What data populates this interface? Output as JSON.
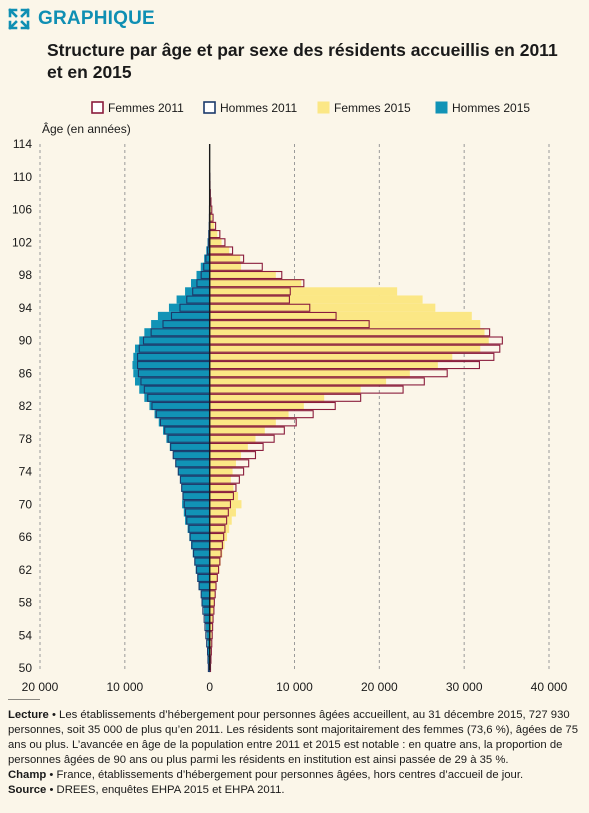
{
  "header": {
    "badge": "GRAPHIQUE",
    "badge_icon": "expand-arrows-icon"
  },
  "colors": {
    "accent": "#0f8fb3",
    "femmes_2011": "#8a1c3c",
    "hommes_2011": "#1b3a6b",
    "femmes_2015": "#fbe785",
    "hommes_2015": "#1193b6",
    "background": "#fbf6e9"
  },
  "chart_data": {
    "type": "bar",
    "orientation": "horizontal-pyramid",
    "title": "Structure par âge et par sexe des résidents accueillis en 2011 et en 2015",
    "ylabel": "Âge (en années)",
    "ylim": [
      50,
      114
    ],
    "y_ticks": [
      "114",
      "110",
      "106",
      "102",
      "98",
      "94",
      "90",
      "86",
      "82",
      "78",
      "74",
      "70",
      "66",
      "62",
      "58",
      "54",
      "50"
    ],
    "xlim": [
      -20000,
      40000
    ],
    "x_ticks": [
      "20 000",
      "10 000",
      "0",
      "10 000",
      "20 000",
      "30 000",
      "40 000"
    ],
    "grid": "vertical dashed",
    "legend_position": "top",
    "series": [
      {
        "name": "Femmes 2011",
        "side": "right",
        "style": "outline"
      },
      {
        "name": "Hommes 2011",
        "side": "left",
        "style": "outline"
      },
      {
        "name": "Femmes 2015",
        "side": "right",
        "style": "filled"
      },
      {
        "name": "Hommes 2015",
        "side": "left",
        "style": "filled"
      }
    ],
    "ages": [
      50,
      51,
      52,
      53,
      54,
      55,
      56,
      57,
      58,
      59,
      60,
      61,
      62,
      63,
      64,
      65,
      66,
      67,
      68,
      69,
      70,
      71,
      72,
      73,
      74,
      75,
      76,
      77,
      78,
      79,
      80,
      81,
      82,
      83,
      84,
      85,
      86,
      87,
      88,
      89,
      90,
      91,
      92,
      93,
      94,
      95,
      96,
      97,
      98,
      99,
      100,
      101,
      102,
      103,
      104,
      105,
      106,
      107,
      108,
      109,
      110
    ],
    "femmes_2011": [
      100,
      150,
      200,
      250,
      300,
      350,
      400,
      500,
      550,
      650,
      750,
      900,
      1050,
      1200,
      1350,
      1500,
      1650,
      1800,
      2000,
      2200,
      2450,
      2800,
      3100,
      3500,
      4000,
      4600,
      5400,
      6300,
      7600,
      8800,
      10200,
      12200,
      14800,
      17800,
      22800,
      25300,
      28000,
      31800,
      33500,
      34200,
      34500,
      33000,
      18800,
      14900,
      11800,
      9400,
      9500,
      11100,
      8500,
      6200,
      4000,
      2700,
      1800,
      1200,
      700,
      400,
      250,
      150,
      80,
      40,
      20
    ],
    "hommes_2011": [
      150,
      200,
      250,
      350,
      450,
      550,
      650,
      800,
      900,
      1000,
      1250,
      1400,
      1550,
      1750,
      1900,
      2100,
      2300,
      2450,
      2700,
      2850,
      3000,
      3150,
      3300,
      3450,
      3700,
      4000,
      4300,
      4600,
      4900,
      5300,
      5800,
      6300,
      6800,
      7300,
      7700,
      8100,
      8400,
      8500,
      8500,
      8300,
      7800,
      6900,
      5500,
      4500,
      3500,
      2700,
      2000,
      1500,
      1000,
      700,
      450,
      250,
      150,
      100,
      50,
      30,
      20,
      10,
      5,
      3,
      1
    ],
    "femmes_2015": [
      100,
      120,
      150,
      200,
      250,
      300,
      350,
      450,
      550,
      650,
      800,
      950,
      1150,
      1300,
      1500,
      1750,
      2050,
      2300,
      2600,
      3100,
      3750,
      3350,
      2800,
      2500,
      2700,
      3100,
      3700,
      4500,
      5400,
      6500,
      7800,
      9300,
      11100,
      13500,
      17800,
      20800,
      23600,
      26900,
      28600,
      31900,
      32900,
      32400,
      31900,
      30900,
      26600,
      25100,
      22100,
      10800,
      7800,
      3700,
      3600,
      2300,
      1400,
      900,
      550,
      300,
      180,
      100,
      50,
      20,
      10
    ],
    "hommes_2015": [
      100,
      150,
      200,
      250,
      350,
      450,
      550,
      700,
      850,
      1000,
      1300,
      1450,
      1650,
      1800,
      2000,
      2200,
      2400,
      2600,
      2900,
      3050,
      3250,
      3200,
      3300,
      3450,
      3700,
      4000,
      4300,
      4700,
      5100,
      5500,
      6000,
      6500,
      7100,
      7700,
      8300,
      8800,
      9000,
      9100,
      9000,
      8800,
      8300,
      7700,
      6900,
      6100,
      4800,
      3900,
      2900,
      2200,
      1550,
      1050,
      650,
      400,
      250,
      150,
      90,
      50,
      30,
      15,
      8,
      4,
      2
    ]
  },
  "notes": {
    "lecture_label": "Lecture",
    "lecture_text": " • Les établissements d’hébergement pour personnes âgées accueillent, au 31 décembre 2015, 727 930 personnes, soit 35 000 de plus qu’en 2011. Les résidents sont majoritairement des femmes (73,6 %), âgées de 75 ans ou plus. L’avancée en âge de la population entre 2011 et 2015 est notable : en quatre ans, la proportion de personnes âgées de 90 ans ou plus parmi les résidents en institution est ainsi passée de 29 à 35 %.",
    "champ_label": "Champ",
    "champ_text": " • France, établissements d’hébergement pour personnes âgées, hors centres d’accueil de jour.",
    "source_label": "Source",
    "source_text": " • DREES, enquêtes EHPA 2015 et EHPA 2011."
  }
}
